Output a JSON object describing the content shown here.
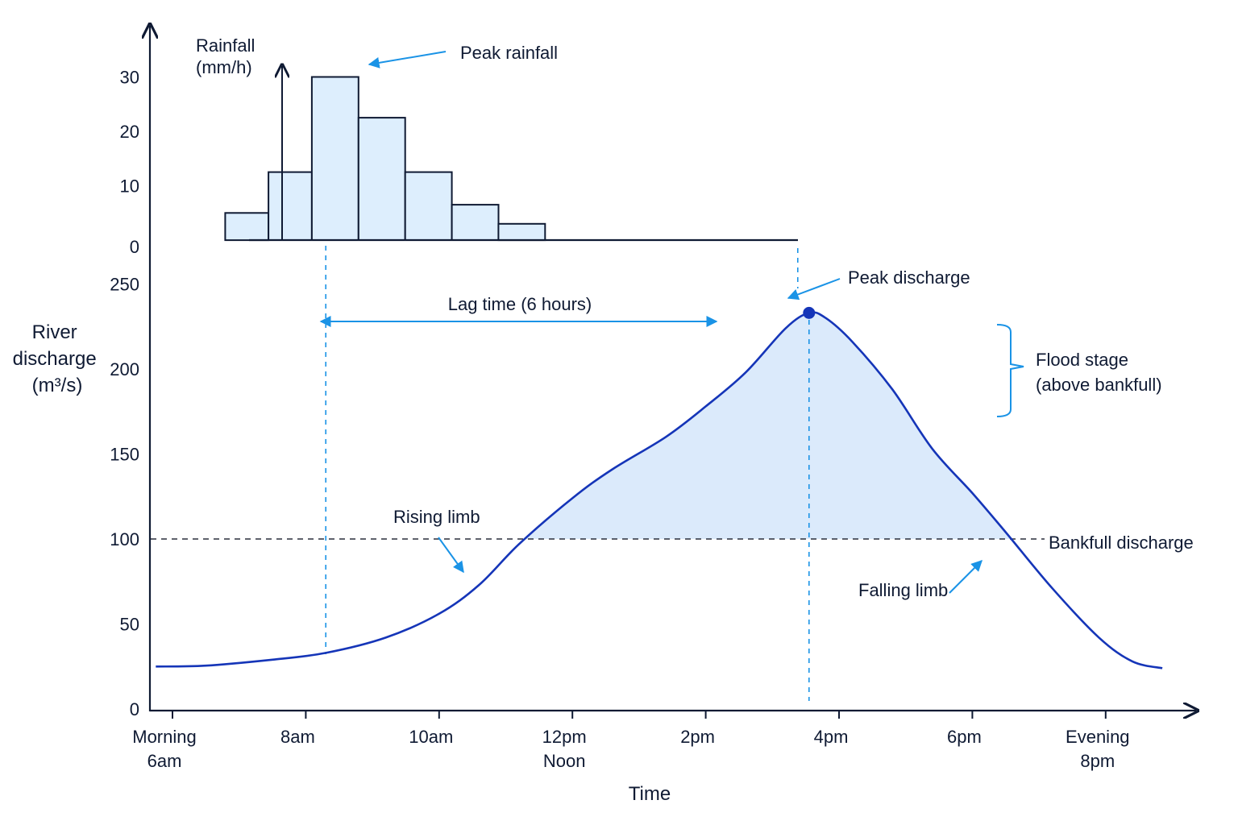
{
  "chart_data": {
    "type": "line",
    "x_axis": {
      "label": "Time",
      "ticks": [
        {
          "hour": 6,
          "lines": [
            "Morning",
            "6am"
          ]
        },
        {
          "hour": 8,
          "lines": [
            "8am"
          ]
        },
        {
          "hour": 10,
          "lines": [
            "10am"
          ]
        },
        {
          "hour": 12,
          "lines": [
            "12pm",
            "Noon"
          ]
        },
        {
          "hour": 14,
          "lines": [
            "2pm"
          ]
        },
        {
          "hour": 16,
          "lines": [
            "4pm"
          ]
        },
        {
          "hour": 18,
          "lines": [
            "6pm"
          ]
        },
        {
          "hour": 20,
          "lines": [
            "Evening",
            "8pm"
          ]
        }
      ]
    },
    "discharge": {
      "ylabel": [
        "River",
        "discharge",
        "(m³/s)"
      ],
      "ylim": [
        0,
        250
      ],
      "yticks": [
        0,
        50,
        100,
        150,
        200,
        250
      ],
      "series": [
        {
          "values": [
            [
              5.75,
              25
            ],
            [
              6.5,
              25.5
            ],
            [
              7.5,
              29
            ],
            [
              8.3,
              33
            ],
            [
              9.2,
              42
            ],
            [
              10.0,
              56
            ],
            [
              10.6,
              73
            ],
            [
              11.2,
              97
            ],
            [
              12.0,
              124
            ],
            [
              12.6,
              141
            ],
            [
              13.4,
              160
            ],
            [
              14.0,
              178
            ],
            [
              14.6,
              198
            ],
            [
              15.2,
              224
            ],
            [
              15.55,
              233
            ],
            [
              15.8,
              230
            ],
            [
              16.2,
              216
            ],
            [
              16.8,
              188
            ],
            [
              17.4,
              153
            ],
            [
              18.0,
              127
            ],
            [
              18.5,
              104
            ],
            [
              19.2,
              71
            ],
            [
              19.9,
              42
            ],
            [
              20.4,
              28
            ],
            [
              20.85,
              24
            ]
          ]
        }
      ],
      "peak": {
        "hour": 15.55,
        "value": 233
      },
      "bankfull_level": 100
    },
    "rainfall": {
      "type": "bar",
      "ylabel": [
        "Rainfall",
        "(mm/h)"
      ],
      "ylim": [
        0,
        30
      ],
      "yticks": [
        0,
        10,
        20,
        30
      ],
      "bars": [
        {
          "start": 7.25,
          "end": 7.9,
          "value": 5
        },
        {
          "start": 7.9,
          "end": 8.55,
          "value": 12.5
        },
        {
          "start": 8.55,
          "end": 9.25,
          "value": 30
        },
        {
          "start": 9.25,
          "end": 9.95,
          "value": 22.5
        },
        {
          "start": 9.95,
          "end": 10.65,
          "value": 12.5
        },
        {
          "start": 10.65,
          "end": 11.35,
          "value": 6.5
        },
        {
          "start": 11.35,
          "end": 12.05,
          "value": 3
        }
      ]
    },
    "annotations": {
      "peak_rainfall": "Peak rainfall",
      "peak_discharge": "Peak discharge",
      "lag_time": "Lag time (6 hours)",
      "flood_stage": [
        "Flood stage",
        "(above bankfull)"
      ],
      "bankfull": "Bankfull discharge",
      "rising_limb": "Rising limb",
      "falling_limb": "Falling limb"
    },
    "colors": {
      "axis": "#0f1a33",
      "curve": "#1535b8",
      "fill": "#dbeafb",
      "bar_fill": "#ddeefd",
      "accent": "#1a93e6",
      "bankfull_line": "#2a2f3c"
    }
  }
}
